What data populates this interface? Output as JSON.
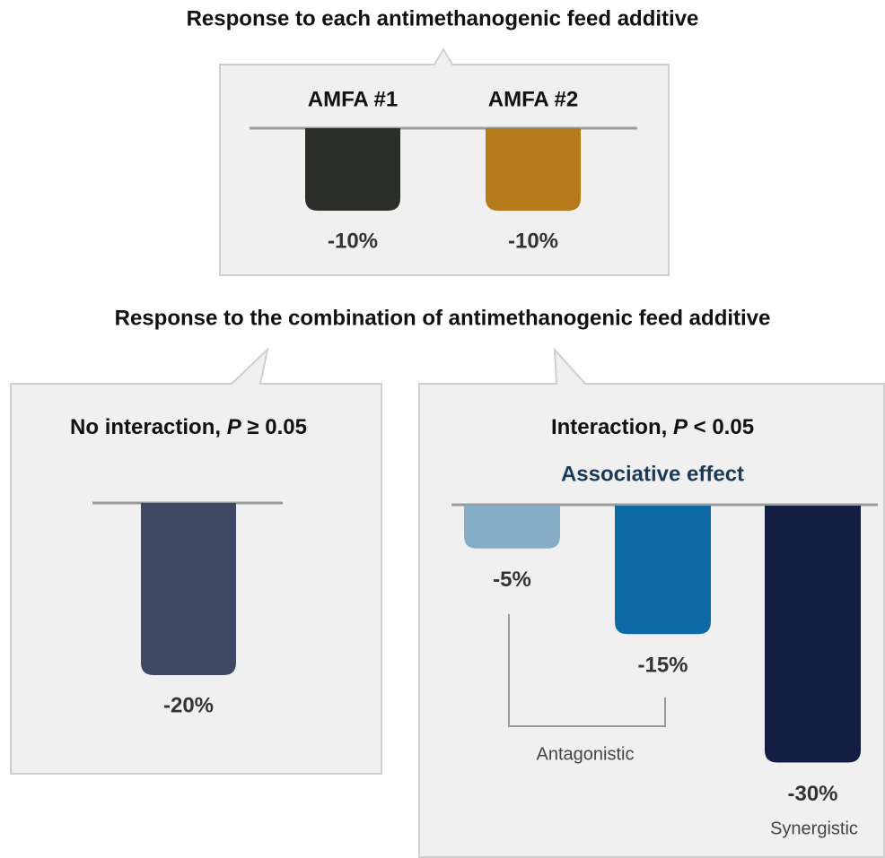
{
  "title_top": "Response to each antimethanogenic feed additive",
  "panel_individual": {
    "categories": [
      "AMFA #1",
      "AMFA #2"
    ],
    "values": [
      -10,
      -10
    ],
    "value_labels": [
      "-10%",
      "-10%"
    ],
    "colors": [
      "#2b2d28",
      "#b57b1a"
    ]
  },
  "title_combination": "Response to the combination of antimethanogenic feed additive",
  "panel_no_interaction": {
    "heading_parts": [
      "No interaction, ",
      "P",
      " ≥ 0.05"
    ],
    "values": [
      -20
    ],
    "value_labels": [
      "-20%"
    ],
    "colors": [
      "#3e4763"
    ]
  },
  "panel_interaction": {
    "heading_parts": [
      "Interaction, ",
      "P",
      " < 0.05"
    ],
    "subheading": "Associative effect",
    "values": [
      -5,
      -15,
      -30
    ],
    "value_labels": [
      "-5%",
      "-15%",
      "-30%"
    ],
    "colors": [
      "#86adc8",
      "#0e6aa5",
      "#141e42"
    ],
    "annotations": [
      "Antagonistic",
      "Synergistic"
    ]
  }
}
